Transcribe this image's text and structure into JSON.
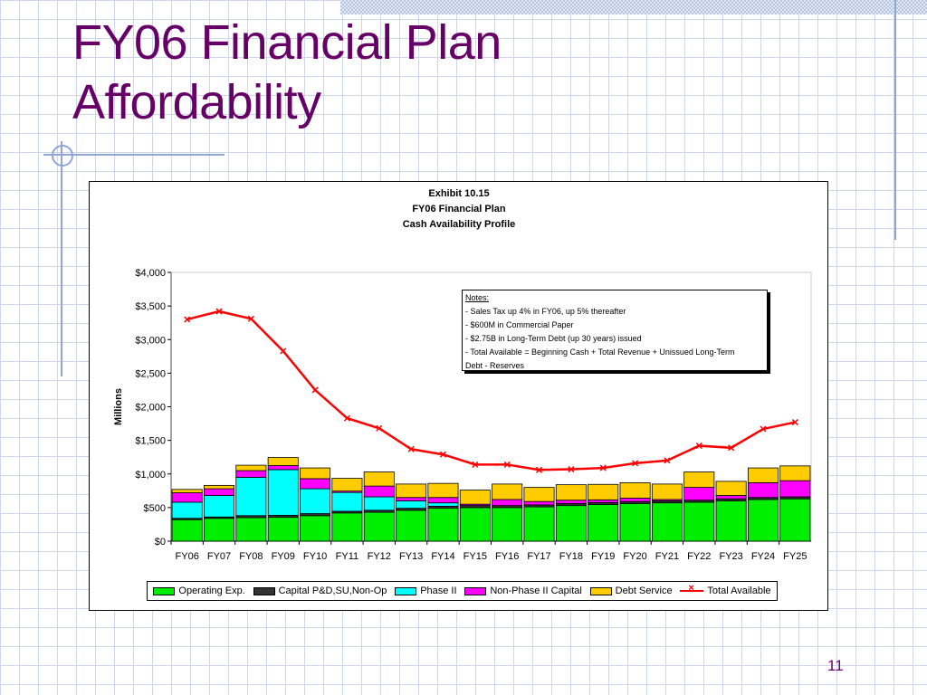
{
  "slide": {
    "title_line1": "FY06 Financial Plan",
    "title_line2": "Affordability",
    "page_number": "11",
    "accent_color": "#660066"
  },
  "chart_data": {
    "type": "bar",
    "subtype": "stacked bar with line overlay",
    "title": [
      "Exhibit 10.15",
      "FY06 Financial Plan",
      "Cash Availability Profile"
    ],
    "xlabel": "",
    "ylabel": "Millions",
    "ylim": [
      0,
      4000
    ],
    "yticks": [
      "$0",
      "$500",
      "$1,000",
      "$1,500",
      "$2,000",
      "$2,500",
      "$3,000",
      "$3,500",
      "$4,000"
    ],
    "ytick_values": [
      0,
      500,
      1000,
      1500,
      2000,
      2500,
      3000,
      3500,
      4000
    ],
    "categories": [
      "FY06",
      "FY07",
      "FY08",
      "FY09",
      "FY10",
      "FY11",
      "FY12",
      "FY13",
      "FY14",
      "FY15",
      "FY16",
      "FY17",
      "FY18",
      "FY19",
      "FY20",
      "FY21",
      "FY22",
      "FY23",
      "FY24",
      "FY25"
    ],
    "series": [
      {
        "name": "Operating Exp.",
        "kind": "bar",
        "color": "#00ee00",
        "values": [
          320,
          340,
          350,
          355,
          380,
          420,
          430,
          460,
          490,
          500,
          500,
          510,
          530,
          545,
          560,
          570,
          580,
          600,
          620,
          630
        ]
      },
      {
        "name": "Capital P&D,SU,Non-Op",
        "kind": "bar",
        "color": "#333333",
        "values": [
          20,
          20,
          30,
          30,
          30,
          25,
          30,
          30,
          30,
          30,
          30,
          30,
          30,
          30,
          30,
          30,
          30,
          30,
          30,
          30
        ]
      },
      {
        "name": "Phase II",
        "kind": "bar",
        "color": "#00ffff",
        "values": [
          240,
          320,
          570,
          680,
          370,
          280,
          200,
          110,
          50,
          0,
          0,
          0,
          0,
          0,
          0,
          0,
          0,
          0,
          0,
          0
        ]
      },
      {
        "name": "Non-Phase II Capital",
        "kind": "bar",
        "color": "#ff00ff",
        "values": [
          140,
          100,
          100,
          60,
          150,
          20,
          160,
          50,
          80,
          20,
          90,
          50,
          50,
          40,
          50,
          20,
          190,
          50,
          220,
          240
        ]
      },
      {
        "name": "Debt Service",
        "kind": "bar",
        "color": "#ffcc00",
        "values": [
          50,
          50,
          80,
          120,
          160,
          190,
          210,
          200,
          210,
          210,
          230,
          210,
          230,
          230,
          230,
          230,
          230,
          210,
          220,
          220
        ]
      },
      {
        "name": "Total Available",
        "kind": "line",
        "color": "#ff0000",
        "values": [
          3300,
          3420,
          3310,
          2830,
          2250,
          1830,
          1680,
          1370,
          1290,
          1140,
          1140,
          1060,
          1070,
          1090,
          1160,
          1200,
          1420,
          1390,
          1670,
          1770
        ]
      }
    ],
    "grid": false,
    "legend_position": "bottom",
    "notes": [
      "Notes:",
      "- Sales Tax up 4% in FY06, up 5% thereafter",
      "- $600M in Commercial Paper",
      "- $2.75B in Long-Term Debt (up 30 years) issued",
      "- Total Available = Beginning Cash + Total Revenue + Unissued Long-Term",
      "Debt - Reserves"
    ]
  }
}
